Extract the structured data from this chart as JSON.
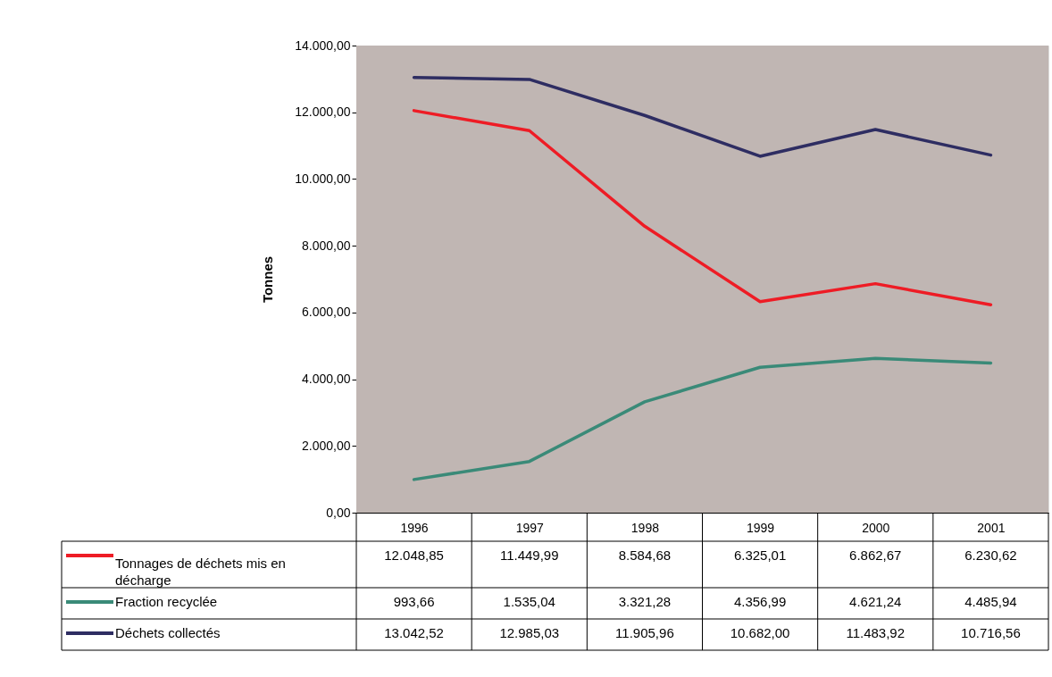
{
  "chart_data": {
    "type": "line",
    "ylabel": "Tonnes",
    "categories": [
      "1996",
      "1997",
      "1998",
      "1999",
      "2000",
      "2001"
    ],
    "ylim": [
      0,
      14000
    ],
    "yticks": [
      {
        "value": 0,
        "label": "0,00"
      },
      {
        "value": 2000,
        "label": "2.000,00"
      },
      {
        "value": 4000,
        "label": "4.000,00"
      },
      {
        "value": 6000,
        "label": "6.000,00"
      },
      {
        "value": 8000,
        "label": "8.000,00"
      },
      {
        "value": 10000,
        "label": "10.000,00"
      },
      {
        "value": 12000,
        "label": "12.000,00"
      },
      {
        "value": 14000,
        "label": "14.000,00"
      }
    ],
    "legend": "bottom",
    "marker": "none",
    "line_style": "solid",
    "series": [
      {
        "name": "Tonnages de déchets mis en décharge",
        "color": "#ee1c25",
        "values": [
          12048.85,
          11449.99,
          8584.68,
          6325.01,
          6862.67,
          6230.62
        ],
        "value_labels": [
          "12.048,85",
          "11.449,99",
          "8.584,68",
          "6.325,01",
          "6.862,67",
          "6.230,62"
        ]
      },
      {
        "name": "Fraction recyclée",
        "color": "#3a8a78",
        "values": [
          993.66,
          1535.04,
          3321.28,
          4356.99,
          4621.24,
          4485.94
        ],
        "value_labels": [
          "993,66",
          "1.535,04",
          "3.321,28",
          "4.356,99",
          "4.621,24",
          "4.485,94"
        ]
      },
      {
        "name": "Déchets collectés",
        "color": "#2e2d62",
        "values": [
          13042.52,
          12985.03,
          11905.96,
          10682.0,
          11483.92,
          10716.56
        ],
        "value_labels": [
          "13.042,52",
          "12.985,03",
          "11.905,96",
          "10.682,00",
          "11.483,92",
          "10.716,56"
        ]
      }
    ]
  }
}
